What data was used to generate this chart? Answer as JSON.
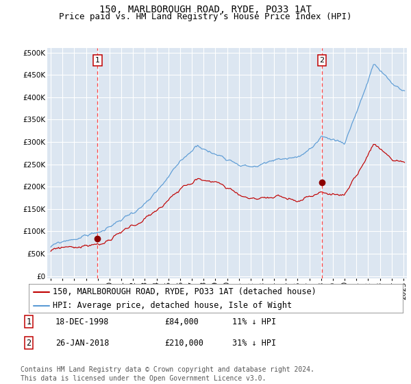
{
  "title": "150, MARLBOROUGH ROAD, RYDE, PO33 1AT",
  "subtitle": "Price paid vs. HM Land Registry's House Price Index (HPI)",
  "ylim": [
    0,
    500000
  ],
  "yticks": [
    0,
    50000,
    100000,
    150000,
    200000,
    250000,
    300000,
    350000,
    400000,
    450000,
    500000
  ],
  "xlim_start": 1994.7,
  "xlim_end": 2025.3,
  "background_color": "#dce6f1",
  "grid_color": "#ffffff",
  "hpi_line_color": "#5b9bd5",
  "price_line_color": "#c00000",
  "vline_color": "#ff4444",
  "dot_color": "#8b0000",
  "marker1_x": 1998.97,
  "marker1_y": 84000,
  "marker2_x": 2018.07,
  "marker2_y": 210000,
  "marker1_label": "1",
  "marker2_label": "2",
  "legend_label_price": "150, MARLBOROUGH ROAD, RYDE, PO33 1AT (detached house)",
  "legend_label_hpi": "HPI: Average price, detached house, Isle of Wight",
  "table_row1": [
    "1",
    "18-DEC-1998",
    "£84,000",
    "11% ↓ HPI"
  ],
  "table_row2": [
    "2",
    "26-JAN-2018",
    "£210,000",
    "31% ↓ HPI"
  ],
  "footnote": "Contains HM Land Registry data © Crown copyright and database right 2024.\nThis data is licensed under the Open Government Licence v3.0.",
  "title_fontsize": 10,
  "subtitle_fontsize": 9,
  "tick_fontsize": 7.5,
  "legend_fontsize": 8.5,
  "table_fontsize": 8.5,
  "footnote_fontsize": 7
}
